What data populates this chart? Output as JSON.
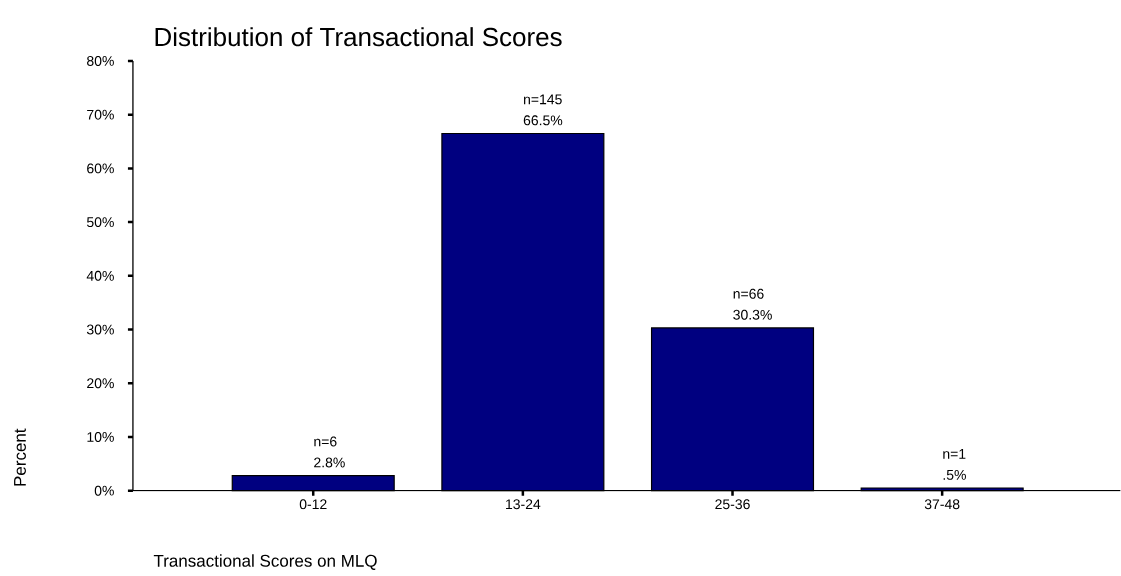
{
  "chart_data": {
    "type": "bar",
    "title": "Distribution of Transactional Scores",
    "xlabel": "Transactional Scores on MLQ",
    "ylabel": "Percent",
    "categories": [
      "0-12",
      "13-24",
      "25-36",
      "37-48"
    ],
    "values": [
      2.8,
      66.5,
      30.3,
      0.5
    ],
    "value_labels": [
      "n=6 2.8%",
      "n=145 66.5%",
      "n=66 30.3%",
      "n=1 .5%"
    ],
    "color": "#000080",
    "ylim": [
      0,
      80
    ],
    "yticks": [
      {
        "value": 0,
        "label": "0%"
      },
      {
        "value": 10,
        "label": "10%"
      },
      {
        "value": 20,
        "label": "20%"
      },
      {
        "value": 30,
        "label": "30%"
      },
      {
        "value": 40,
        "label": "40%"
      },
      {
        "value": 50,
        "label": "50%"
      },
      {
        "value": 60,
        "label": "60%"
      },
      {
        "value": 70,
        "label": "70%"
      },
      {
        "value": 80,
        "label": "80%"
      }
    ],
    "grid": false
  }
}
